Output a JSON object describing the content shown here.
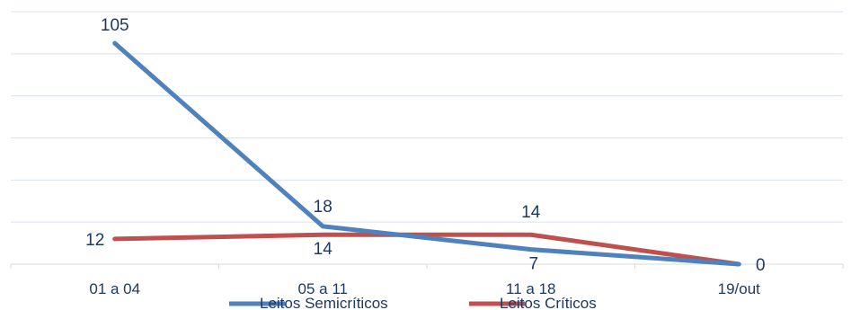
{
  "chart_data": {
    "type": "line",
    "categories": [
      "01 a 04",
      "05 a 11",
      "11 a 18",
      "19/out"
    ],
    "ylim": [
      0,
      120
    ],
    "grid": true,
    "legend_placement": "bottom",
    "series": [
      {
        "name": "Leitos Semicríticos",
        "values": [
          105,
          18,
          7,
          0
        ],
        "labels": [
          "105",
          "18",
          "7",
          ""
        ],
        "color": "#4F81BD"
      },
      {
        "name": "Leitos Críticos",
        "values": [
          12,
          14,
          14,
          0
        ],
        "labels": [
          "12",
          "14",
          "14",
          "0"
        ],
        "color": "#C0504D"
      }
    ]
  }
}
